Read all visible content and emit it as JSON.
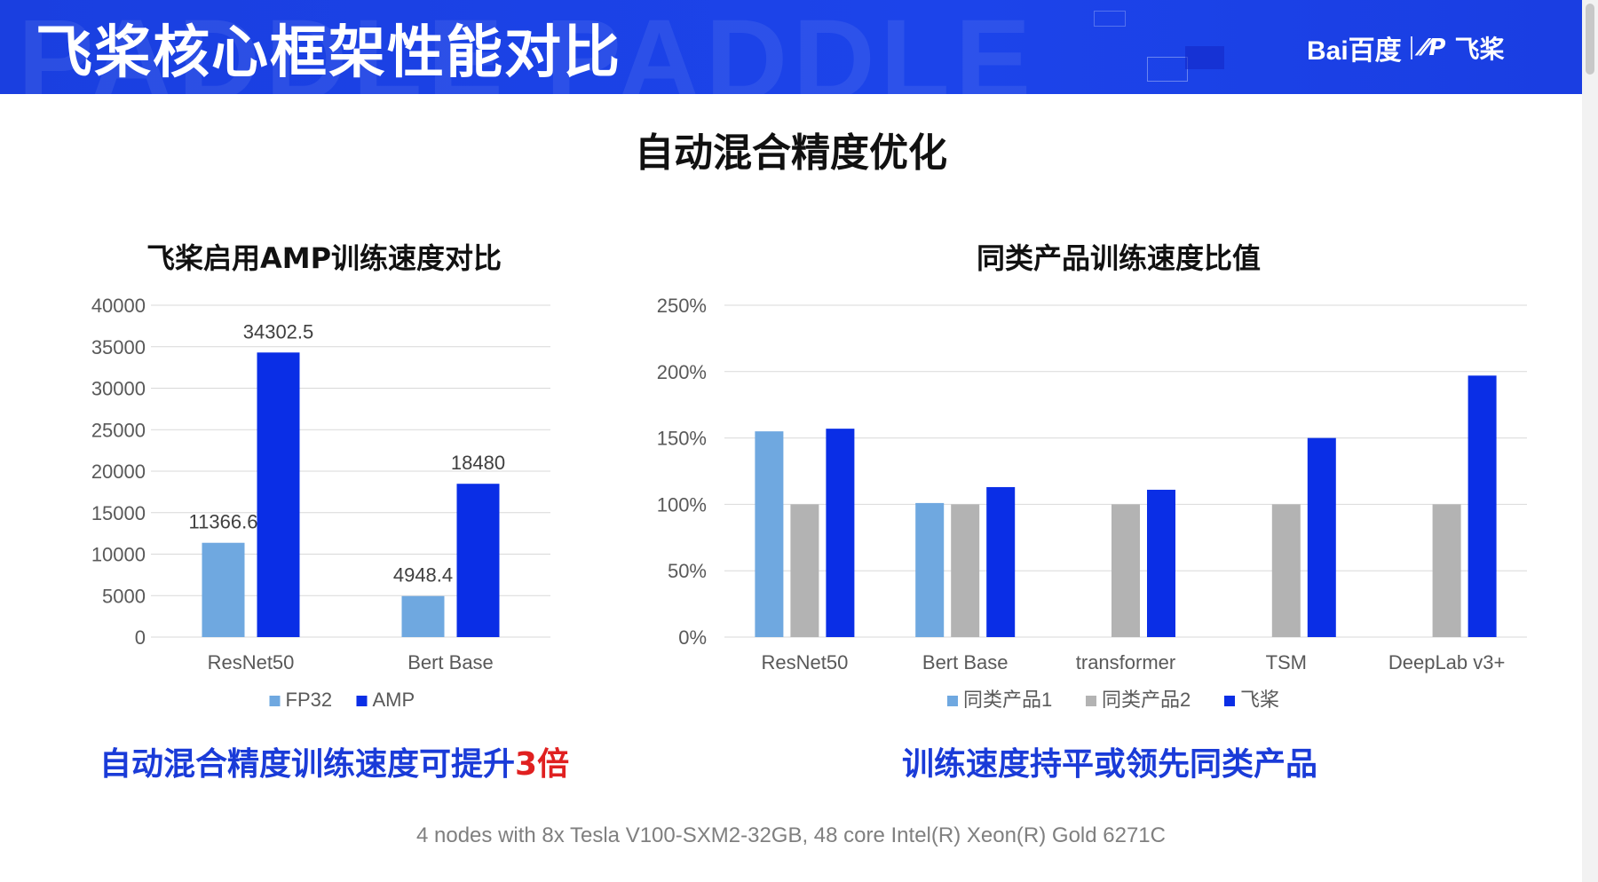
{
  "header": {
    "title": "飞桨核心框架性能对比",
    "watermark": "PADDLE PADDLE",
    "logo_baidu": "Bai百度",
    "logo_paddle": "飞桨"
  },
  "subtitle": "自动混合精度优化",
  "captions": {
    "left_main": "自动混合精度训练速度可提升",
    "left_highlight": "3倍",
    "right": "训练速度持平或领先同类产品"
  },
  "footnote": "4 nodes with 8x Tesla V100-SXM2-32GB,  48 core Intel(R) Xeon(R) Gold 6271C",
  "colors": {
    "light_blue": "#6fa8e0",
    "gray": "#b3b3b3",
    "dark_blue": "#0a2ee6",
    "header_blue": "#1c44ea",
    "highlight_red": "#e02020"
  },
  "chart_data": [
    {
      "type": "bar",
      "title": "飞桨启用AMP训练速度对比",
      "categories": [
        "ResNet50",
        "Bert Base"
      ],
      "series": [
        {
          "name": "FP32",
          "values": [
            11366.6,
            4948.4
          ],
          "labels": [
            "11366.6",
            "4948.4"
          ],
          "color": "#6fa8e0"
        },
        {
          "name": "AMP",
          "values": [
            34302.5,
            18480
          ],
          "labels": [
            "34302.5",
            "18480"
          ],
          "color": "#0a2ee6"
        }
      ],
      "ylim": [
        0,
        40000
      ],
      "yticks": [
        "0",
        "5000",
        "10000",
        "15000",
        "20000",
        "25000",
        "30000",
        "35000",
        "40000"
      ],
      "grid": true,
      "legend": "bottom"
    },
    {
      "type": "bar",
      "title": "同类产品训练速度比值",
      "categories": [
        "ResNet50",
        "Bert Base",
        "transformer",
        "TSM",
        "DeepLab v3+"
      ],
      "series": [
        {
          "name": "同类产品1",
          "values": [
            1.55,
            1.01,
            null,
            null,
            null
          ],
          "color": "#6fa8e0"
        },
        {
          "name": "同类产品2",
          "values": [
            1.0,
            1.0,
            1.0,
            1.0,
            1.0
          ],
          "color": "#b3b3b3"
        },
        {
          "name": "飞桨",
          "values": [
            1.57,
            1.13,
            1.11,
            1.5,
            1.97
          ],
          "color": "#0a2ee6"
        }
      ],
      "ylim": [
        0,
        2.5
      ],
      "yticks": [
        "0%",
        "50%",
        "100%",
        "150%",
        "200%",
        "250%"
      ],
      "grid": true,
      "legend": "bottom"
    }
  ]
}
